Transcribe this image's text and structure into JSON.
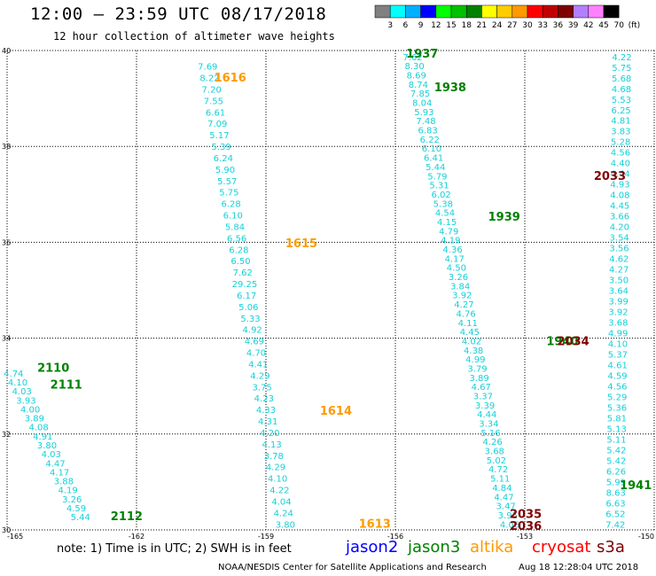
{
  "header": {
    "title": "12:00 – 23:59 UTC 08/17/2018",
    "subtitle": "12 hour collection of altimeter wave heights"
  },
  "colors": {
    "wave_value": "#15d0d8",
    "jason2": "#0000ff",
    "jason3": "#008000",
    "altika": "#ff9900",
    "cryosat": "#ff0000",
    "s3a": "#800000"
  },
  "color_legend": {
    "labels": [
      "3",
      "6",
      "9",
      "12",
      "15",
      "18",
      "21",
      "24",
      "27",
      "30",
      "33",
      "36",
      "39",
      "42",
      "45",
      "70",
      "(ft)"
    ],
    "swatches": [
      "#808080",
      "#00ffff",
      "#00b0ff",
      "#0000ff",
      "#00ff00",
      "#00c000",
      "#008000",
      "#ffff00",
      "#ffcc00",
      "#ff9900",
      "#ff0000",
      "#c00000",
      "#800000",
      "#b080ff",
      "#ff80ff",
      "#000000"
    ]
  },
  "notes": {
    "note": "note: 1) Time is in UTC; 2) SWH is in feet",
    "missions": [
      "jason2",
      "jason3",
      "altika",
      "cryosat",
      "s3a"
    ]
  },
  "footer": {
    "credit": "NOAA/NESDIS Center for Satellite Applications and Research",
    "timestamp": "Aug 18 12:28:04 UTC 2018"
  },
  "chart_data": {
    "type": "scatter",
    "xlim": [
      -165,
      -150
    ],
    "ylim": [
      30,
      40
    ],
    "xticks": [
      -165,
      -162,
      -159,
      -156,
      -153,
      -150
    ],
    "yticks": [
      30,
      32,
      34,
      36,
      38,
      40
    ],
    "grid": true,
    "tracks": [
      {
        "values": [
          7.69,
          8.22,
          7.2,
          7.55,
          6.61,
          7.09,
          5.17,
          5.39,
          6.24,
          5.9,
          5.57,
          5.75,
          6.28,
          6.1,
          5.84,
          6.56,
          6.28,
          6.5,
          7.62,
          29.25,
          6.17,
          5.06,
          5.33,
          4.92,
          4.69,
          4.7,
          4.41,
          4.29,
          3.75,
          4.23,
          4.33,
          4.31,
          4.2,
          4.13,
          3.78,
          4.29,
          4.1,
          4.22,
          4.04,
          4.24,
          3.8
        ],
        "lon_start": -160.35,
        "lat_start": 39.6,
        "lon_end": -158.55,
        "lat_end": 30.05,
        "times": [
          {
            "label": "1616",
            "color": "#ff9900",
            "lon": -160.2,
            "lat": 39.35
          },
          {
            "label": "1615",
            "color": "#ff9900",
            "lon": -158.55,
            "lat": 35.9
          },
          {
            "label": "1614",
            "color": "#ff9900",
            "lon": -157.75,
            "lat": 32.4
          },
          {
            "label": "1613",
            "color": "#ff9900",
            "lon": -156.85,
            "lat": 30.05
          }
        ]
      },
      {
        "values": [
          4.74,
          4.1,
          4.03,
          3.93,
          4.0,
          3.89,
          4.08,
          4.91,
          3.8,
          4.03,
          4.47,
          4.17,
          3.88,
          4.19,
          3.26,
          4.59,
          5.44
        ],
        "lon_start": -164.85,
        "lat_start": 33.2,
        "lon_end": -163.3,
        "lat_end": 30.2,
        "times": [
          {
            "label": "2110",
            "color": "#008000",
            "lon": -164.3,
            "lat": 33.3
          },
          {
            "label": "2111",
            "color": "#008000",
            "lon": -164.0,
            "lat": 32.95
          },
          {
            "label": "2112",
            "color": "#008000",
            "lon": -162.6,
            "lat": 30.2
          }
        ]
      },
      {
        "values": [
          7.62,
          8.3,
          8.69,
          8.74,
          7.85,
          8.04,
          5.93,
          7.48,
          6.83,
          6.22,
          6.1,
          6.41,
          5.44,
          5.79,
          5.31,
          6.02,
          5.38,
          4.54,
          4.15,
          4.79,
          4.19,
          4.36,
          4.17,
          4.5,
          3.26,
          3.84,
          3.92,
          4.27,
          4.76,
          4.11,
          4.45,
          4.02,
          4.38,
          4.99,
          3.79,
          3.89,
          4.67,
          3.37,
          3.39,
          4.44,
          3.34,
          5.16,
          4.26,
          3.68,
          5.02,
          4.72,
          5.11,
          4.84,
          4.47,
          3.47,
          3.95,
          4.06
        ],
        "lon_start": -155.6,
        "lat_start": 39.8,
        "lon_end": -153.35,
        "lat_end": 30.05,
        "times": [
          {
            "label": "1937",
            "color": "#008000",
            "lon": -155.75,
            "lat": 39.85
          },
          {
            "label": "1938",
            "color": "#008000",
            "lon": -155.1,
            "lat": 39.15
          },
          {
            "label": "1939",
            "color": "#008000",
            "lon": -153.85,
            "lat": 36.45
          },
          {
            "label": "2035",
            "color": "#800000",
            "lon": -153.35,
            "lat": 30.25
          },
          {
            "label": "2036",
            "color": "#800000",
            "lon": -153.35,
            "lat": 30.0
          }
        ]
      },
      {
        "values": [
          4.22,
          5.75,
          5.68,
          4.68,
          5.53,
          6.25,
          4.81,
          3.83,
          5.28,
          4.56,
          4.4,
          4.44,
          4.93,
          4.08,
          4.45,
          3.66,
          4.2,
          3.54,
          3.56,
          4.62,
          4.27,
          3.5,
          3.64,
          3.99,
          3.92,
          3.68,
          4.99,
          4.1,
          5.37,
          4.61,
          4.59,
          4.56,
          5.29,
          5.36,
          5.81,
          5.13,
          5.11,
          5.42,
          5.42,
          6.26,
          5.99,
          8.63,
          6.63,
          6.52,
          7.42
        ],
        "lon_start": -150.75,
        "lat_start": 39.8,
        "lon_end": -150.9,
        "lat_end": 30.05,
        "times": [
          {
            "label": "2033",
            "color": "#800000",
            "lon": -151.4,
            "lat": 37.3
          },
          {
            "label": "1940",
            "color": "#008000",
            "lon": -152.5,
            "lat": 33.85
          },
          {
            "label": "2034",
            "color": "#800000",
            "lon": -152.25,
            "lat": 33.85
          },
          {
            "label": "1941",
            "color": "#008000",
            "lon": -150.8,
            "lat": 30.85
          }
        ]
      }
    ]
  }
}
